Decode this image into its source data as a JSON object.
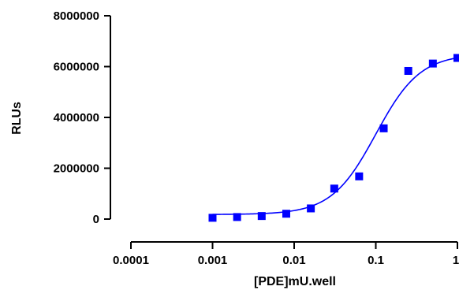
{
  "chart_data": {
    "type": "scatter",
    "xscale": "log",
    "xlabel": "[PDE]mU.well",
    "ylabel": "RLUs",
    "xlim": [
      0.0001,
      1
    ],
    "ylim": [
      0,
      8000000
    ],
    "xticks": [
      {
        "value": 0.0001,
        "label": "0.0001"
      },
      {
        "value": 0.001,
        "label": "0.001"
      },
      {
        "value": 0.01,
        "label": "0.01"
      },
      {
        "value": 0.1,
        "label": "0.1"
      },
      {
        "value": 1,
        "label": "1"
      }
    ],
    "yticks": [
      {
        "value": 0,
        "label": "0"
      },
      {
        "value": 2000000,
        "label": "2000000"
      },
      {
        "value": 4000000,
        "label": "4000000"
      },
      {
        "value": 6000000,
        "label": "6000000"
      },
      {
        "value": 8000000,
        "label": "8000000"
      }
    ],
    "color": "#0000ff",
    "series": [
      {
        "points": [
          {
            "x": 0.001,
            "y": 50000
          },
          {
            "x": 0.002,
            "y": 80000
          },
          {
            "x": 0.004,
            "y": 120000
          },
          {
            "x": 0.008,
            "y": 210000
          },
          {
            "x": 0.016,
            "y": 420000
          },
          {
            "x": 0.031,
            "y": 1200000
          },
          {
            "x": 0.0625,
            "y": 1680000
          },
          {
            "x": 0.125,
            "y": 3570000
          },
          {
            "x": 0.25,
            "y": 5830000
          },
          {
            "x": 0.5,
            "y": 6120000
          },
          {
            "x": 1,
            "y": 6340000
          }
        ],
        "fit": {
          "model": "sigmoidal dose-response",
          "bottom": 180000,
          "top": 6500000,
          "ec50": 0.1,
          "hillslope": 1.6
        }
      }
    ],
    "grid": false,
    "legend": "none"
  }
}
